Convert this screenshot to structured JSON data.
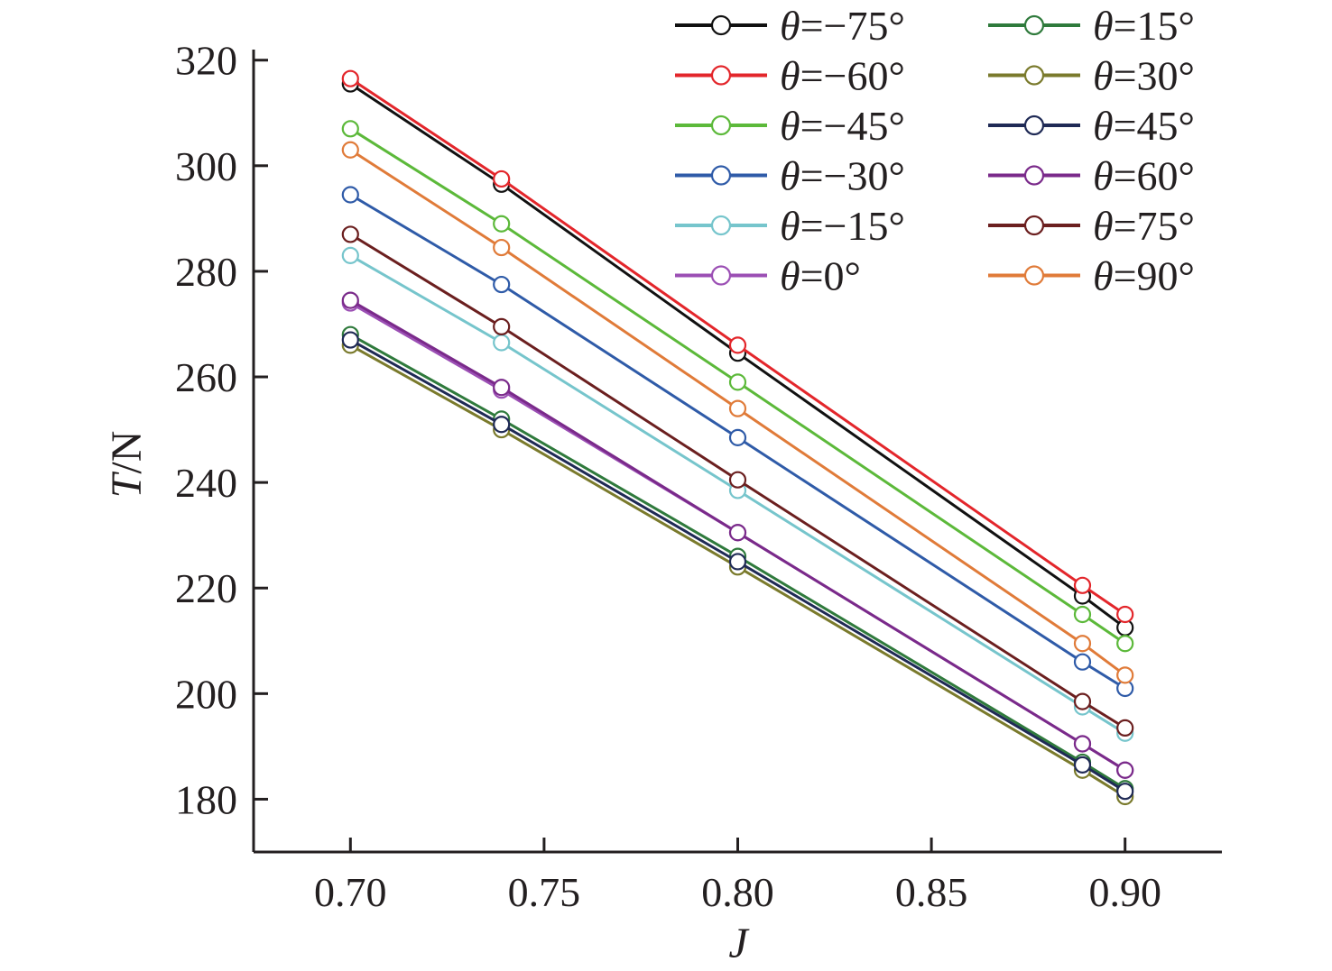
{
  "chart_data": {
    "type": "line",
    "xlabel": "J",
    "ylabel": {
      "italic": "T",
      "rest": "/N"
    },
    "xlim": [
      0.675,
      0.925
    ],
    "ylim": [
      170,
      322
    ],
    "xticks": [
      0.7,
      0.75,
      0.8,
      0.85,
      0.9
    ],
    "xtick_labels": [
      "0.70",
      "0.75",
      "0.80",
      "0.85",
      "0.90"
    ],
    "yticks": [
      180,
      200,
      220,
      240,
      260,
      280,
      300,
      320
    ],
    "ytick_labels": [
      "180",
      "200",
      "220",
      "240",
      "260",
      "280",
      "300",
      "320"
    ],
    "grid": false,
    "legend_position": "top-right",
    "legend_columns": 2,
    "x": [
      0.7,
      0.739,
      0.8,
      0.889,
      0.9
    ],
    "series": [
      {
        "name": "θ=−75°",
        "symbol": "θ",
        "label": "=−75°",
        "color": "#111111",
        "values": [
          315.5,
          296.5,
          264.5,
          218.5,
          212.5
        ]
      },
      {
        "name": "θ=−60°",
        "symbol": "θ",
        "label": "=−60°",
        "color": "#e3262b",
        "values": [
          316.5,
          297.5,
          266.0,
          220.5,
          215.0
        ]
      },
      {
        "name": "θ=−45°",
        "symbol": "θ",
        "label": "=−45°",
        "color": "#5cb93a",
        "values": [
          307.0,
          289.0,
          259.0,
          215.0,
          209.5
        ]
      },
      {
        "name": "θ=−30°",
        "symbol": "θ",
        "label": "=−30°",
        "color": "#2f5ba8",
        "values": [
          294.5,
          277.5,
          248.5,
          206.0,
          201.0
        ]
      },
      {
        "name": "θ=−15°",
        "symbol": "θ",
        "label": "=−15°",
        "color": "#76c5cc",
        "values": [
          283.0,
          266.5,
          238.5,
          197.5,
          192.5
        ]
      },
      {
        "name": "θ=0°",
        "symbol": "θ",
        "label": "=0°",
        "color": "#9b4fb4",
        "values": [
          274.0,
          257.5,
          230.5,
          190.5,
          185.5
        ]
      },
      {
        "name": "θ=15°",
        "symbol": "θ",
        "label": "=15°",
        "color": "#2f7a3c",
        "values": [
          268.0,
          252.0,
          226.0,
          187.0,
          182.0
        ]
      },
      {
        "name": "θ=30°",
        "symbol": "θ",
        "label": "=30°",
        "color": "#7a7a2c",
        "values": [
          266.0,
          250.0,
          224.0,
          185.5,
          180.5
        ]
      },
      {
        "name": "θ=45°",
        "symbol": "θ",
        "label": "=45°",
        "color": "#1f2a55",
        "values": [
          267.0,
          251.0,
          225.0,
          186.5,
          181.5
        ]
      },
      {
        "name": "θ=60°",
        "symbol": "θ",
        "label": "=60°",
        "color": "#7a2a8a",
        "values": [
          274.5,
          258.0,
          230.5,
          190.5,
          185.5
        ]
      },
      {
        "name": "θ=75°",
        "symbol": "θ",
        "label": "=75°",
        "color": "#6b1f1f",
        "values": [
          287.0,
          269.5,
          240.5,
          198.5,
          193.5
        ]
      },
      {
        "name": "θ=90°",
        "symbol": "θ",
        "label": "=90°",
        "color": "#e07b39",
        "values": [
          303.0,
          284.5,
          254.0,
          209.5,
          203.5
        ]
      }
    ]
  }
}
